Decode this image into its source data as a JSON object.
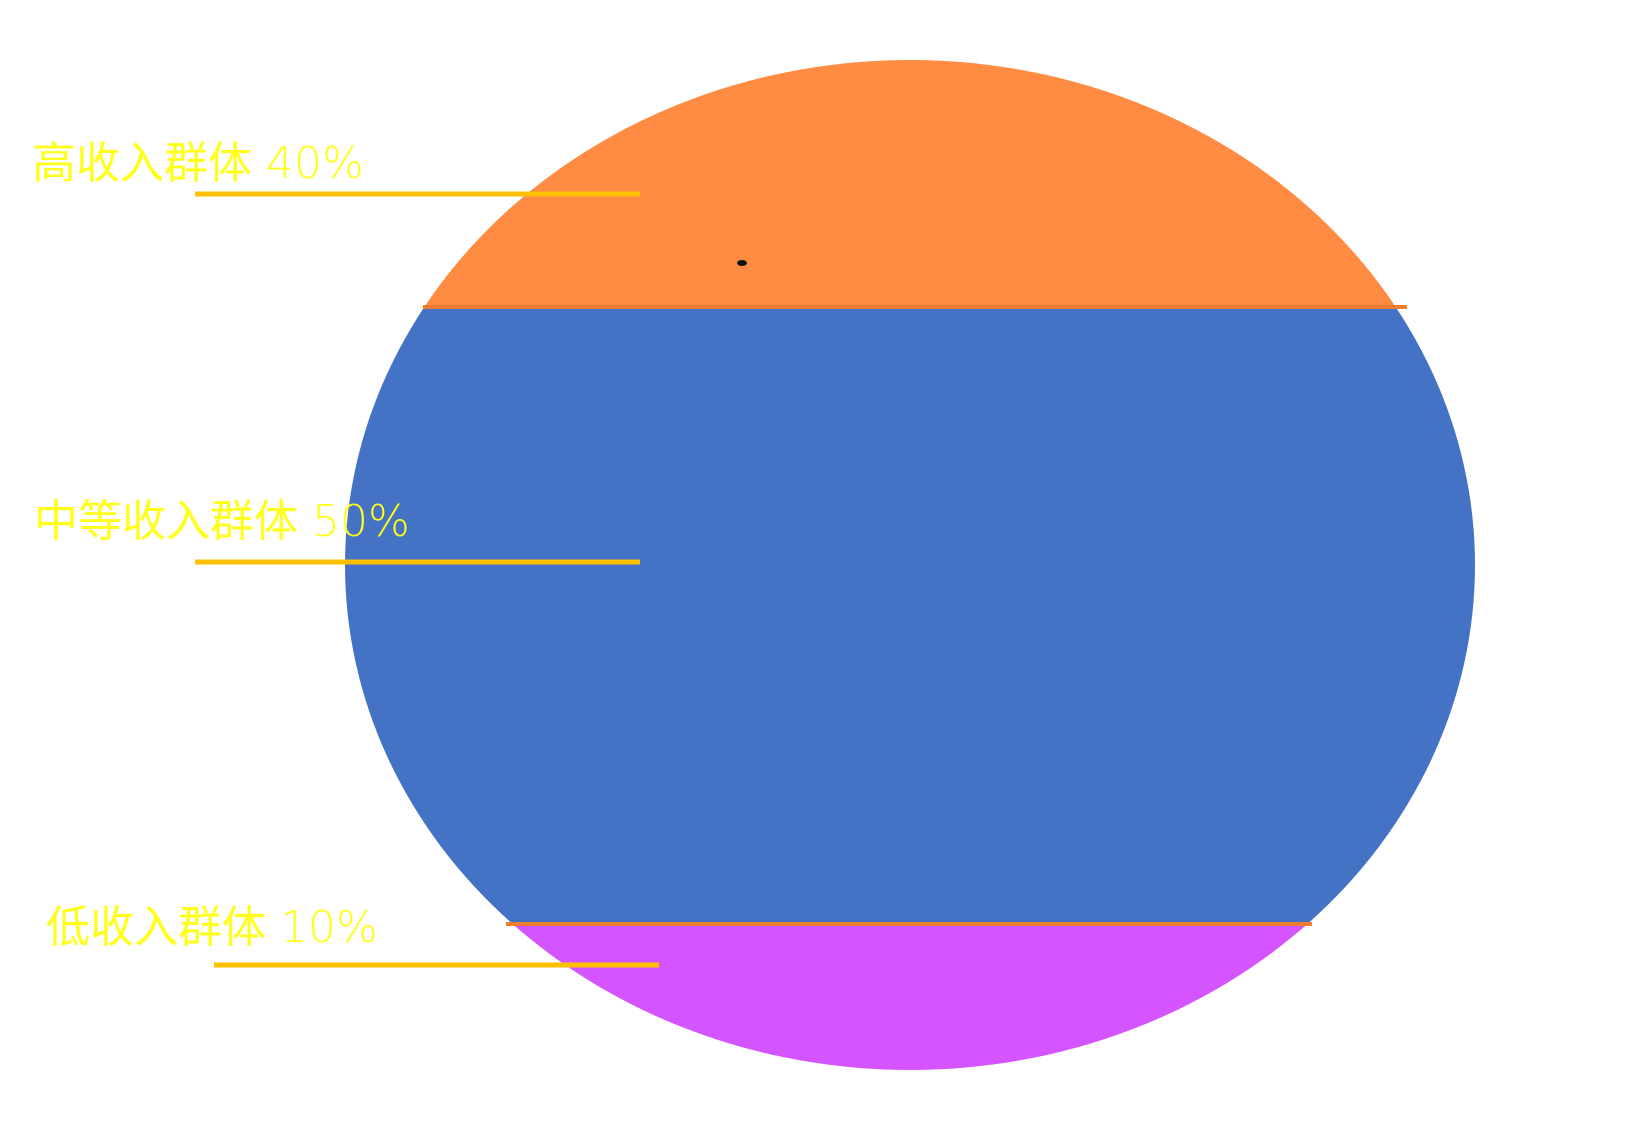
{
  "chart_data": {
    "type": "stacked-circle",
    "segments": [
      {
        "name": "高收入群体",
        "percent": 40,
        "label": "高收入群体 40%",
        "color": "#FF8C42"
      },
      {
        "name": "中等收入群体",
        "percent": 50,
        "label": "中等收入群体 50%",
        "color": "#4472C4"
      },
      {
        "name": "低收入群体",
        "percent": 10,
        "label": "低收入群体 10%",
        "color": "#D455FF"
      }
    ],
    "label_color": "#FFFF1A",
    "leader_color": "#FFC000",
    "divider_color": "#ED7D31"
  }
}
